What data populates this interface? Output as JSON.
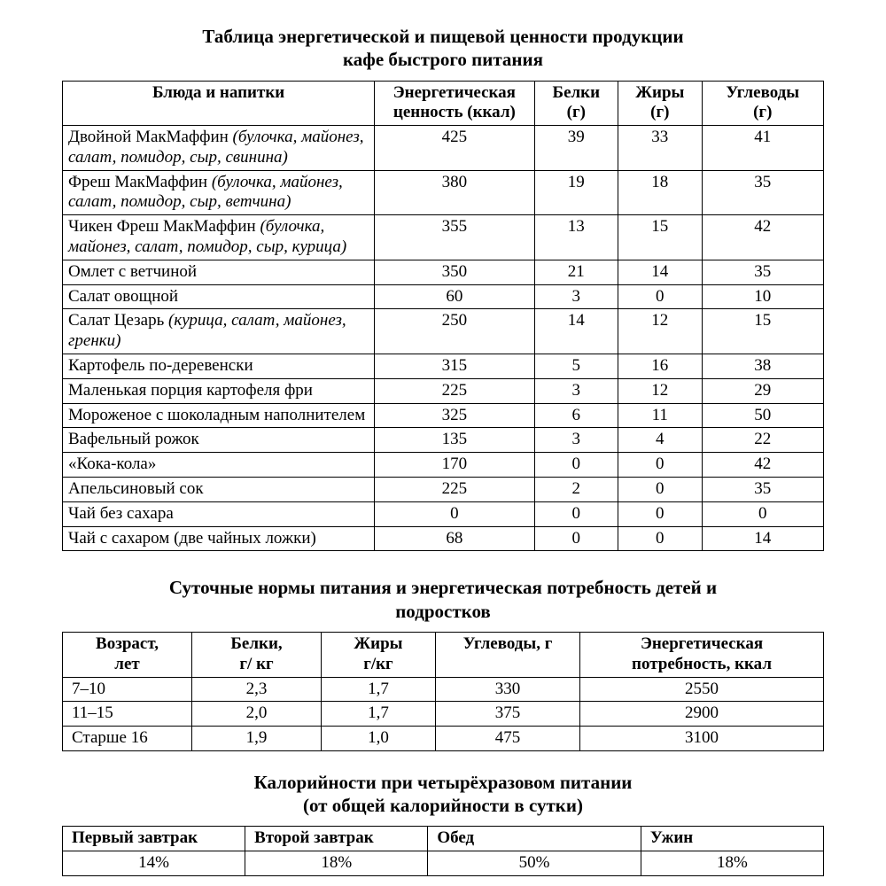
{
  "colors": {
    "text": "#000000",
    "bg": "#ffffff",
    "border": "#000000"
  },
  "fonts": {
    "family": "Times New Roman",
    "title_pt": 21,
    "body_pt": 19
  },
  "table1": {
    "title_l1": "Таблица энергетической и пищевой ценности продукции",
    "title_l2": "кафе быстрого питания",
    "col_widths_pct": [
      41,
      21,
      11,
      11,
      16
    ],
    "headers": {
      "c1": "Блюда и напитки",
      "c2_l1": "Энергетическая",
      "c2_l2": "ценность (ккал)",
      "c3_l1": "Белки",
      "c3_l2": "(г)",
      "c4_l1": "Жиры",
      "c4_l2": "(г)",
      "c5_l1": "Углеводы",
      "c5_l2": "(г)"
    },
    "rows": [
      {
        "name": "Двойной МакМаффин",
        "sub": "(булочка, майонез, салат, помидор, сыр, свинина)",
        "kcal": "425",
        "p": "39",
        "f": "33",
        "c": "41"
      },
      {
        "name": "Фреш МакМаффин",
        "sub": "(булочка, майонез, салат, помидор, сыр, ветчина)",
        "name_inline_sub": true,
        "kcal": "380",
        "p": "19",
        "f": "18",
        "c": "35"
      },
      {
        "name": "Чикен Фреш МакМаффин",
        "sub": "(булочка, майонез, салат, помидор, сыр, курица)",
        "kcal": "355",
        "p": "13",
        "f": "15",
        "c": "42"
      },
      {
        "name": "Омлет с ветчиной",
        "kcal": "350",
        "p": "21",
        "f": "14",
        "c": "35"
      },
      {
        "name": "Салат овощной",
        "kcal": "60",
        "p": "3",
        "f": "0",
        "c": "10"
      },
      {
        "name": "Салат Цезарь",
        "sub": "(курица, салат, майонез, гренки)",
        "name_inline_sub": true,
        "kcal": "250",
        "p": "14",
        "f": "12",
        "c": "15"
      },
      {
        "name": "Картофель по-деревенски",
        "kcal": "315",
        "p": "5",
        "f": "16",
        "c": "38"
      },
      {
        "name": "Маленькая порция картофеля фри",
        "kcal": "225",
        "p": "3",
        "f": "12",
        "c": "29"
      },
      {
        "name": "Мороженое с шоколадным наполнителем",
        "kcal": "325",
        "p": "6",
        "f": "11",
        "c": "50"
      },
      {
        "name": "Вафельный рожок",
        "kcal": "135",
        "p": "3",
        "f": "4",
        "c": "22"
      },
      {
        "name": "«Кока-кола»",
        "kcal": "170",
        "p": "0",
        "f": "0",
        "c": "42"
      },
      {
        "name": "Апельсиновый сок",
        "kcal": "225",
        "p": "2",
        "f": "0",
        "c": "35"
      },
      {
        "name": "Чай без сахара",
        "kcal": "0",
        "p": "0",
        "f": "0",
        "c": "0"
      },
      {
        "name": "Чай с сахаром (две чайных ложки)",
        "kcal": "68",
        "p": "0",
        "f": "0",
        "c": "14"
      }
    ]
  },
  "table2": {
    "title_l1": "Суточные нормы питания и энергетическая потребность детей и",
    "title_l2": "подростков",
    "col_widths_pct": [
      17,
      17,
      15,
      19,
      32
    ],
    "headers": {
      "c1_l1": "Возраст,",
      "c1_l2": "лет",
      "c2_l1": "Белки,",
      "c2_l2": "г/ кг",
      "c3_l1": "Жиры",
      "c3_l2": "г/кг",
      "c4": "Углеводы, г",
      "c5_l1": "Энергетическая",
      "c5_l2": "потребность, ккал"
    },
    "rows": [
      {
        "age": "7–10",
        "p": "2,3",
        "f": "1,7",
        "c": "330",
        "kcal": "2550"
      },
      {
        "age": "11–15",
        "p": "2,0",
        "f": "1,7",
        "c": "375",
        "kcal": "2900"
      },
      {
        "age": "Старше 16",
        "p": "1,9",
        "f": "1,0",
        "c": "475",
        "kcal": "3100"
      }
    ]
  },
  "table3": {
    "title_l1": "Калорийности при четырёхразовом питании",
    "title_l2": "(от общей калорийности в сутки)",
    "col_widths_pct": [
      24,
      24,
      28,
      24
    ],
    "headers": {
      "c1": "Первый завтрак",
      "c2": "Второй завтрак",
      "c3": "Обед",
      "c4": "Ужин"
    },
    "row": {
      "v1": "14%",
      "v2": "18%",
      "v3": "50%",
      "v4": "18%"
    }
  }
}
